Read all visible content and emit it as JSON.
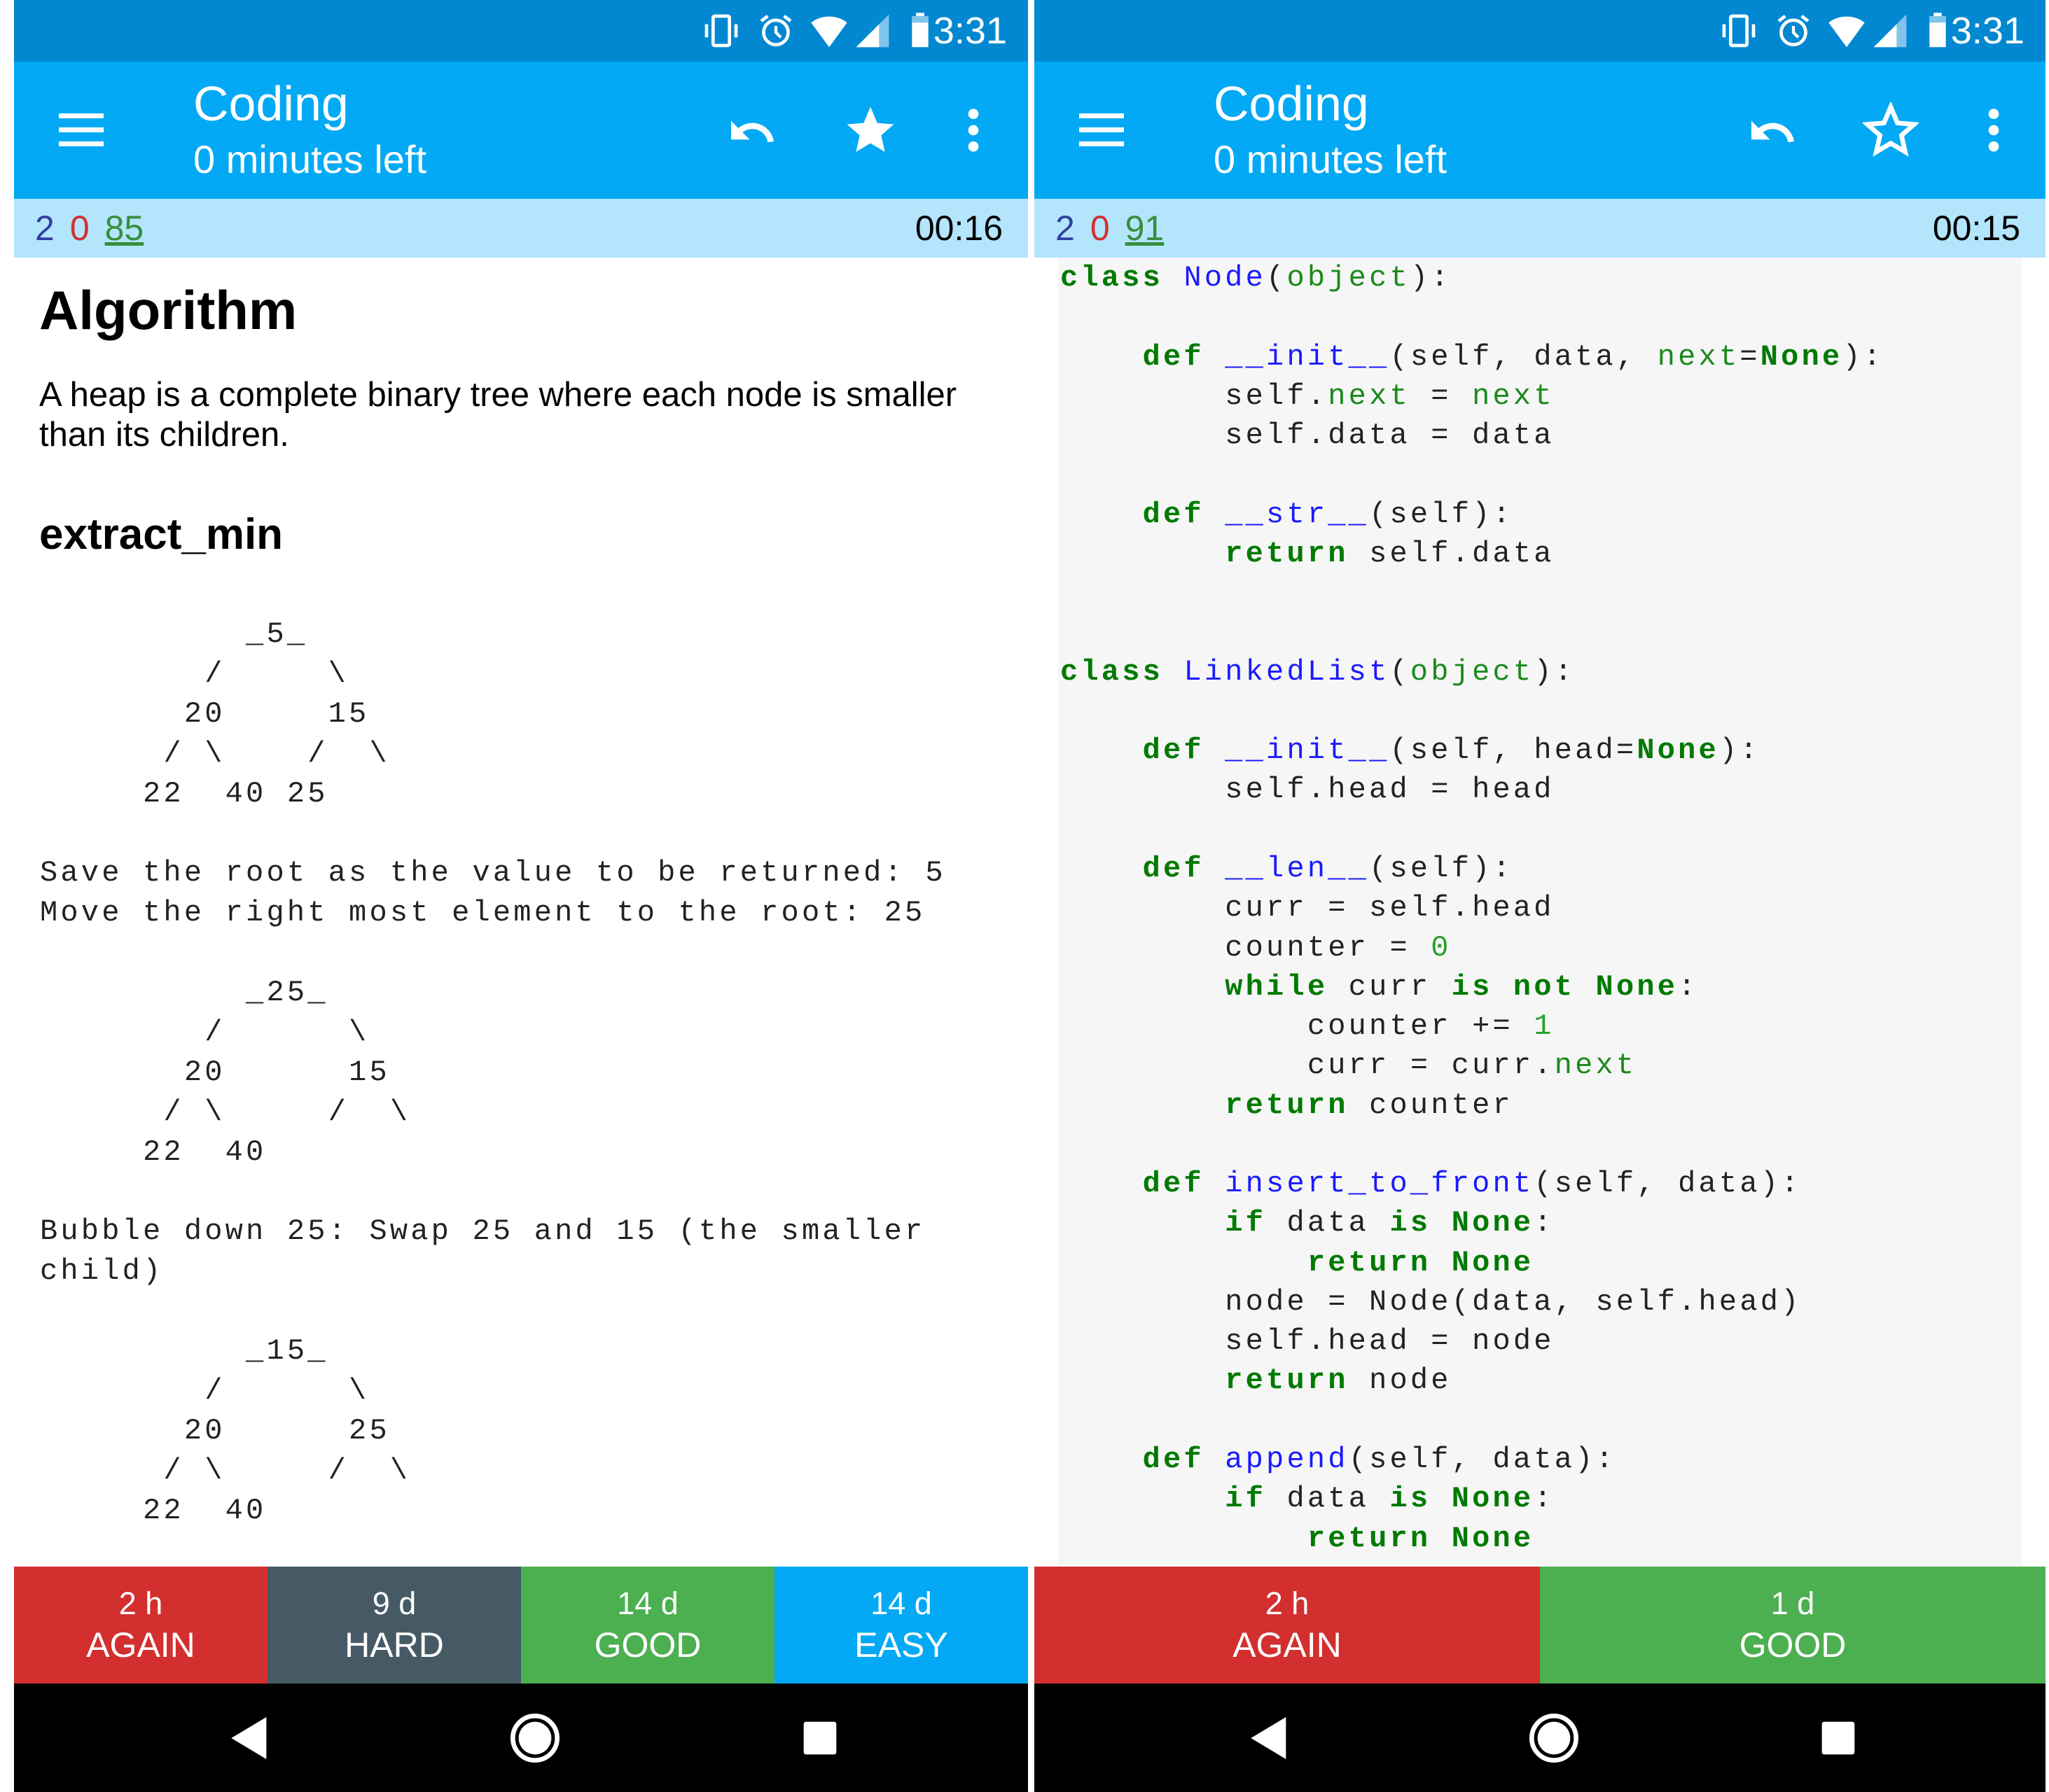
{
  "panels": [
    {
      "status": {
        "time": "3:31"
      },
      "toolbar": {
        "title": "Coding",
        "subtitle": "0 minutes left",
        "star_filled": true
      },
      "stats": {
        "new": "2",
        "learning": "0",
        "review": "85",
        "timer": "00:16"
      },
      "card": {
        "heading": "Algorithm",
        "description": "A heap is a complete binary tree where each node is smaller than its children.",
        "subheading": "extract_min",
        "pre_lines": [
          "          _5_",
          "        /     \\",
          "       20     15",
          "      / \\    /  \\",
          "     22  40 25",
          "",
          "Save the root as the value to be returned: 5",
          "Move the right most element to the root: 25",
          "",
          "          _25_",
          "        /      \\",
          "       20      15",
          "      / \\     /  \\",
          "     22  40",
          "",
          "Bubble down 25: Swap 25 and 15 (the smaller",
          "child)",
          "",
          "          _15_",
          "        /      \\",
          "       20      25",
          "      / \\     /  \\",
          "     22  40"
        ]
      },
      "answers": [
        {
          "interval": "2 h",
          "label": "AGAIN",
          "color": "#d32f2f"
        },
        {
          "interval": "9 d",
          "label": "HARD",
          "color": "#455a64"
        },
        {
          "interval": "14 d",
          "label": "GOOD",
          "color": "#4caf50"
        },
        {
          "interval": "14 d",
          "label": "EASY",
          "color": "#03a9f4"
        }
      ]
    },
    {
      "status": {
        "time": "3:31"
      },
      "toolbar": {
        "title": "Coding",
        "subtitle": "0 minutes left",
        "star_filled": false
      },
      "stats": {
        "new": "2",
        "learning": "0",
        "review": "91",
        "timer": "00:15"
      },
      "code_lines": [
        [
          [
            "k",
            "class"
          ],
          [
            "t",
            " "
          ],
          [
            "f",
            "Node"
          ],
          [
            "t",
            "("
          ],
          [
            "b",
            "object"
          ],
          [
            "t",
            "):"
          ]
        ],
        [],
        [
          [
            "t",
            "    "
          ],
          [
            "k",
            "def"
          ],
          [
            "t",
            " "
          ],
          [
            "f",
            "__init__"
          ],
          [
            "t",
            "(self, data, "
          ],
          [
            "b",
            "next"
          ],
          [
            "t",
            "="
          ],
          [
            "k",
            "None"
          ],
          [
            "t",
            "):"
          ]
        ],
        [
          [
            "t",
            "        self."
          ],
          [
            "b",
            "next"
          ],
          [
            "t",
            " = "
          ],
          [
            "b",
            "next"
          ]
        ],
        [
          [
            "t",
            "        self.data = data"
          ]
        ],
        [],
        [
          [
            "t",
            "    "
          ],
          [
            "k",
            "def"
          ],
          [
            "t",
            " "
          ],
          [
            "f",
            "__str__"
          ],
          [
            "t",
            "(self):"
          ]
        ],
        [
          [
            "t",
            "        "
          ],
          [
            "k",
            "return"
          ],
          [
            "t",
            " self.data"
          ]
        ],
        [],
        [],
        [
          [
            "k",
            "class"
          ],
          [
            "t",
            " "
          ],
          [
            "f",
            "LinkedList"
          ],
          [
            "t",
            "("
          ],
          [
            "b",
            "object"
          ],
          [
            "t",
            "):"
          ]
        ],
        [],
        [
          [
            "t",
            "    "
          ],
          [
            "k",
            "def"
          ],
          [
            "t",
            " "
          ],
          [
            "f",
            "__init__"
          ],
          [
            "t",
            "(self, head="
          ],
          [
            "k",
            "None"
          ],
          [
            "t",
            "):"
          ]
        ],
        [
          [
            "t",
            "        self.head = head"
          ]
        ],
        [],
        [
          [
            "t",
            "    "
          ],
          [
            "k",
            "def"
          ],
          [
            "t",
            " "
          ],
          [
            "f",
            "__len__"
          ],
          [
            "t",
            "(self):"
          ]
        ],
        [
          [
            "t",
            "        curr = self.head"
          ]
        ],
        [
          [
            "t",
            "        counter = "
          ],
          [
            "n",
            "0"
          ]
        ],
        [
          [
            "t",
            "        "
          ],
          [
            "k",
            "while"
          ],
          [
            "t",
            " curr "
          ],
          [
            "k",
            "is"
          ],
          [
            "t",
            " "
          ],
          [
            "k",
            "not"
          ],
          [
            "t",
            " "
          ],
          [
            "k",
            "None"
          ],
          [
            "t",
            ":"
          ]
        ],
        [
          [
            "t",
            "            counter += "
          ],
          [
            "n",
            "1"
          ]
        ],
        [
          [
            "t",
            "            curr = curr."
          ],
          [
            "b",
            "next"
          ]
        ],
        [
          [
            "t",
            "        "
          ],
          [
            "k",
            "return"
          ],
          [
            "t",
            " counter"
          ]
        ],
        [],
        [
          [
            "t",
            "    "
          ],
          [
            "k",
            "def"
          ],
          [
            "t",
            " "
          ],
          [
            "f",
            "insert_to_front"
          ],
          [
            "t",
            "(self, data):"
          ]
        ],
        [
          [
            "t",
            "        "
          ],
          [
            "k",
            "if"
          ],
          [
            "t",
            " data "
          ],
          [
            "k",
            "is"
          ],
          [
            "t",
            " "
          ],
          [
            "k",
            "None"
          ],
          [
            "t",
            ":"
          ]
        ],
        [
          [
            "t",
            "            "
          ],
          [
            "k",
            "return"
          ],
          [
            "t",
            " "
          ],
          [
            "k",
            "None"
          ]
        ],
        [
          [
            "t",
            "        node = Node(data, self.head)"
          ]
        ],
        [
          [
            "t",
            "        self.head = node"
          ]
        ],
        [
          [
            "t",
            "        "
          ],
          [
            "k",
            "return"
          ],
          [
            "t",
            " node"
          ]
        ],
        [],
        [
          [
            "t",
            "    "
          ],
          [
            "k",
            "def"
          ],
          [
            "t",
            " "
          ],
          [
            "f",
            "append"
          ],
          [
            "t",
            "(self, data):"
          ]
        ],
        [
          [
            "t",
            "        "
          ],
          [
            "k",
            "if"
          ],
          [
            "t",
            " data "
          ],
          [
            "k",
            "is"
          ],
          [
            "t",
            " "
          ],
          [
            "k",
            "None"
          ],
          [
            "t",
            ":"
          ]
        ],
        [
          [
            "t",
            "            "
          ],
          [
            "k",
            "return"
          ],
          [
            "t",
            " "
          ],
          [
            "k",
            "None"
          ]
        ]
      ],
      "answers": [
        {
          "interval": "2 h",
          "label": "AGAIN",
          "color": "#d32f2f"
        },
        {
          "interval": "1 d",
          "label": "GOOD",
          "color": "#4caf50"
        }
      ]
    }
  ],
  "icons": {
    "status": [
      "vibrate-icon",
      "alarm-icon",
      "wifi-icon",
      "signal-icon",
      "battery-icon"
    ],
    "toolbar": [
      "menu-icon",
      "undo-icon",
      "star-icon",
      "more-vert-icon"
    ],
    "nav": [
      "back-icon",
      "home-icon",
      "recents-icon"
    ]
  },
  "colors": {
    "status_bar": "#0288d1",
    "toolbar": "#03a9f4",
    "stats_bar": "#b3e5fc",
    "code_keyword": "#007a00",
    "code_function": "#1a1aff"
  }
}
